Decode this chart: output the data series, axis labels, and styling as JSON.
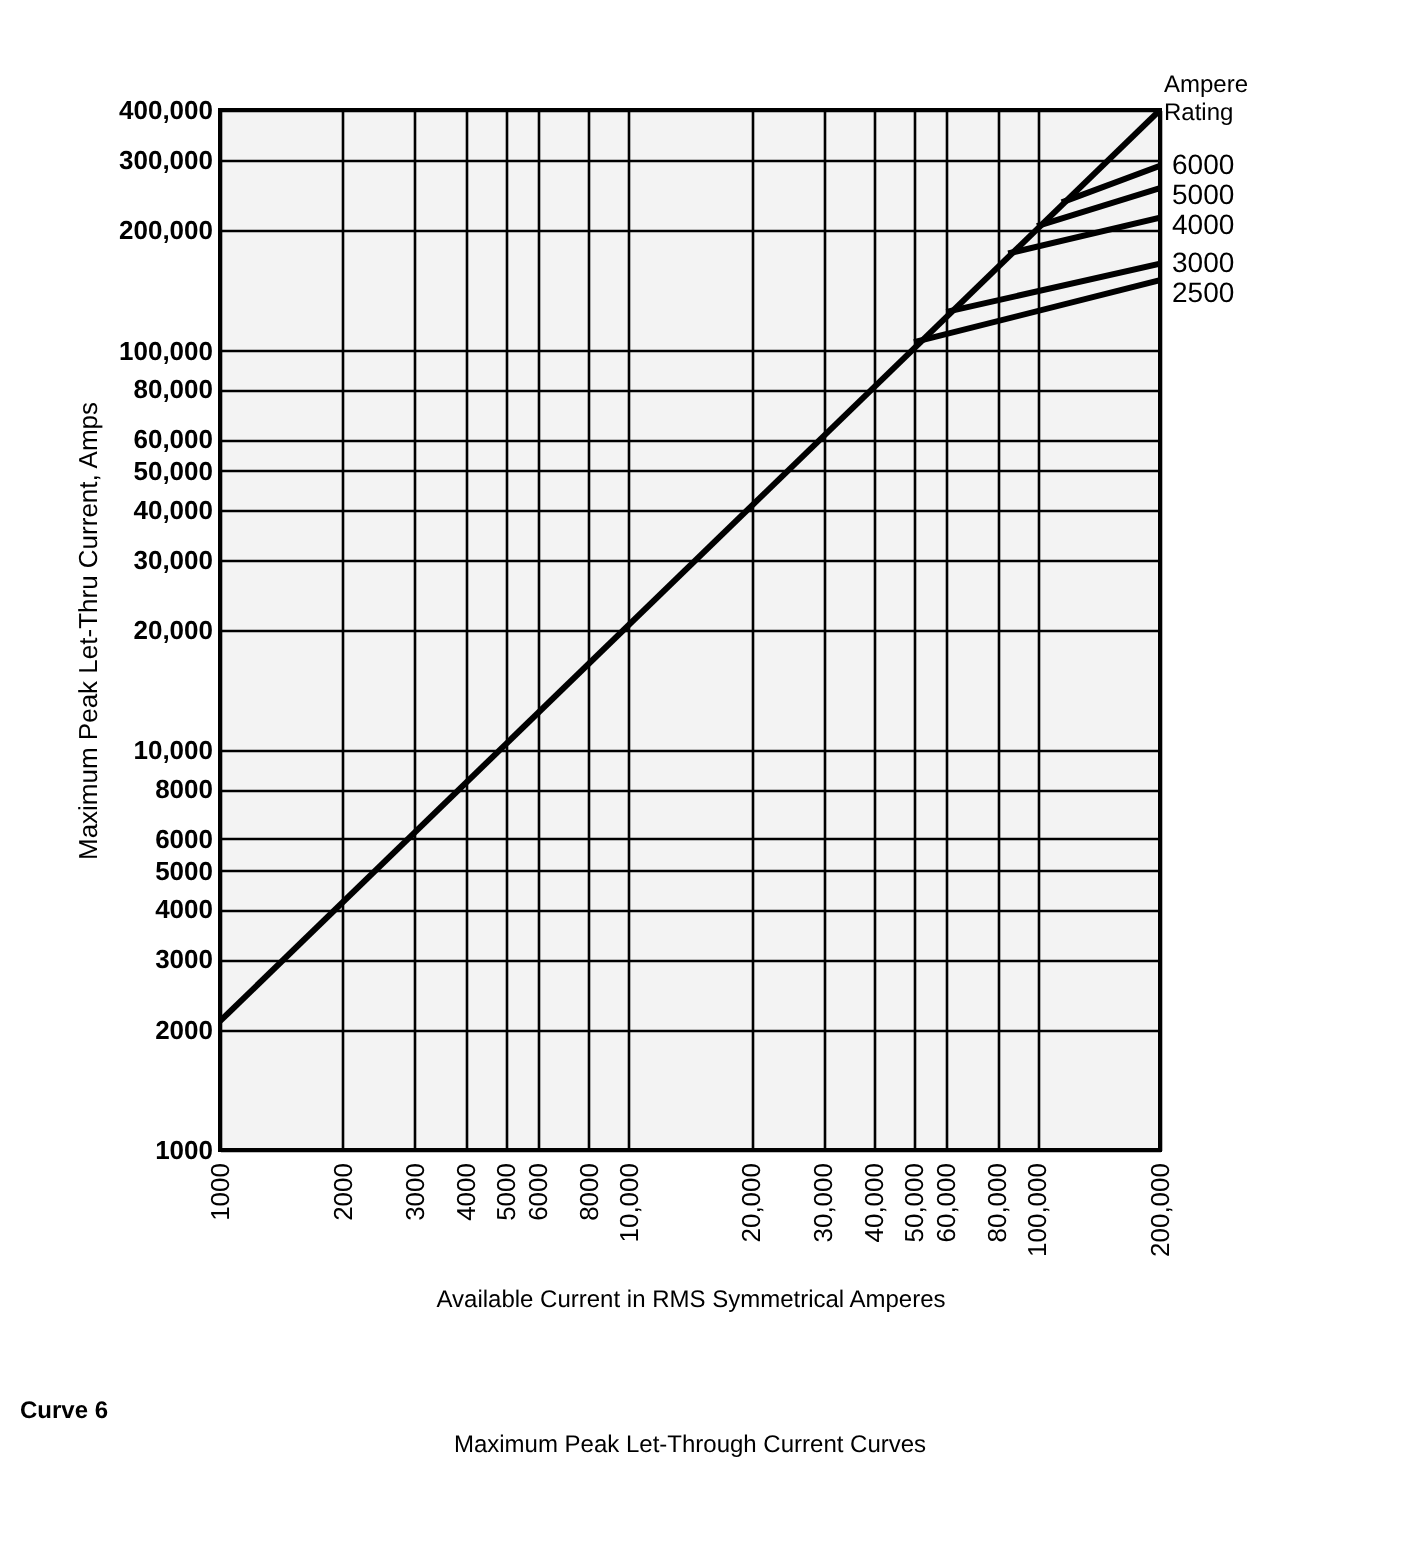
{
  "chart_data": {
    "type": "line",
    "title": "Maximum Peak Let-Through Current Curves",
    "xlabel": "Available Current in RMS Symmetrical Amperes",
    "ylabel": "Maximum Peak Let-Thru Current, Amps",
    "legend_title": "Ampere Rating",
    "annotations": [
      "Curve 6"
    ],
    "log": "xy",
    "grid": true,
    "xlim": [
      1000,
      200000
    ],
    "ylim": [
      1000,
      400000
    ],
    "xticks": [
      1000,
      2000,
      3000,
      4000,
      5000,
      6000,
      8000,
      {
        "value": 10000,
        "label": "10,000"
      },
      {
        "value": 20000,
        "label": "20,000"
      },
      {
        "value": 30000,
        "label": "30,000"
      },
      {
        "value": 40000,
        "label": "40,000"
      },
      {
        "value": 50000,
        "label": "50,000"
      },
      {
        "value": 60000,
        "label": "60,000"
      },
      {
        "value": 80000,
        "label": "80,000"
      },
      {
        "value": 100000,
        "label": "100,000"
      },
      {
        "value": 200000,
        "label": "200,000"
      }
    ],
    "yticks": [
      1000,
      2000,
      3000,
      4000,
      5000,
      6000,
      8000,
      {
        "value": 10000,
        "label": "10,000"
      },
      {
        "value": 20000,
        "label": "20,000"
      },
      {
        "value": 30000,
        "label": "30,000"
      },
      {
        "value": 40000,
        "label": "40,000"
      },
      {
        "value": 50000,
        "label": "50,000"
      },
      {
        "value": 60000,
        "label": "60,000"
      },
      {
        "value": 80000,
        "label": "80,000"
      },
      {
        "value": 100000,
        "label": "100,000"
      },
      {
        "value": 200000,
        "label": "200,000"
      },
      {
        "value": 300000,
        "label": "300,000"
      },
      {
        "value": 400000,
        "label": "400,000"
      }
    ],
    "series": [
      {
        "color": "#000000",
        "x": [
          1000,
          200000
        ],
        "values": [
          2100,
          400000
        ]
      },
      {
        "name": "6000",
        "color": "#000000",
        "x": [
          115000,
          200000
        ],
        "values": [
          235000,
          290000
        ]
      },
      {
        "name": "5000",
        "color": "#000000",
        "x": [
          100000,
          200000
        ],
        "values": [
          205000,
          255000
        ]
      },
      {
        "name": "4000",
        "color": "#000000",
        "x": [
          85000,
          200000
        ],
        "values": [
          175000,
          215000
        ]
      },
      {
        "name": "3000",
        "color": "#000000",
        "x": [
          60000,
          200000
        ],
        "values": [
          125000,
          165000
        ]
      },
      {
        "name": "2500",
        "color": "#000000",
        "x": [
          50000,
          200000
        ],
        "values": [
          105000,
          150000
        ]
      }
    ]
  }
}
